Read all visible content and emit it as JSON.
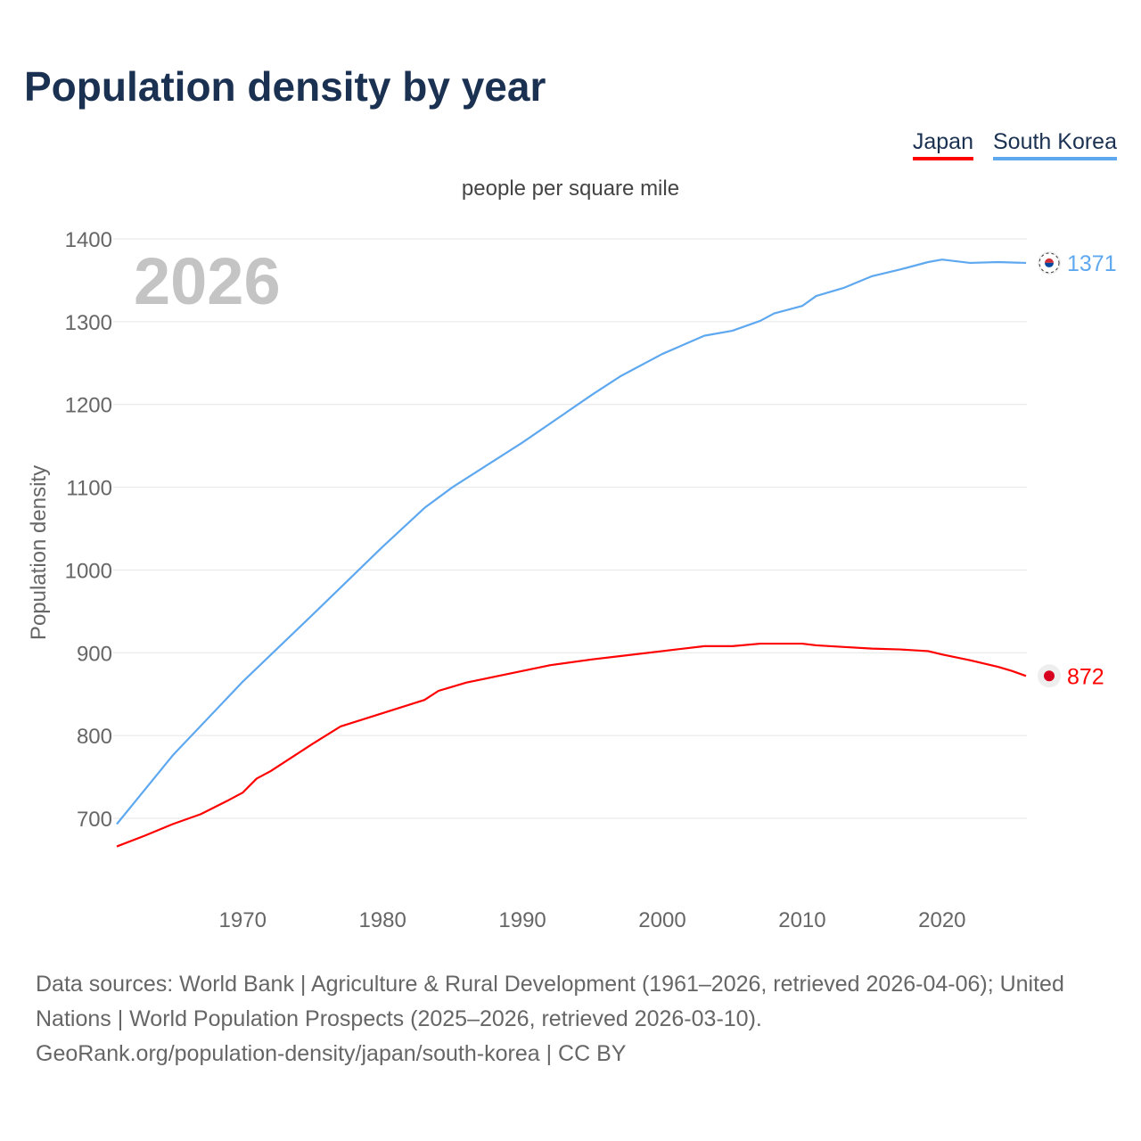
{
  "title": "Population density by year",
  "legend": [
    {
      "label": "Japan",
      "color": "#ff0000"
    },
    {
      "label": "South Korea",
      "color": "#5ea8f0"
    }
  ],
  "footer": {
    "line1": "Data sources: World Bank | Agriculture & Rural Development (1961–2026, retrieved 2026-04-06); United Nations | World Population Prospects (2025–2026, retrieved 2026-03-10).",
    "line2": "GeoRank.org/population-density/japan/south-korea | CC BY"
  },
  "chart_data": {
    "type": "line",
    "title": "Population density by year",
    "subtitle": "people per square mile",
    "xlabel": "",
    "ylabel": "Population density",
    "watermark_year": "2026",
    "xlim": [
      1961,
      2026
    ],
    "ylim": [
      620,
      1400
    ],
    "xticks": [
      1970,
      1980,
      1990,
      2000,
      2010,
      2020
    ],
    "yticks": [
      700,
      800,
      900,
      1000,
      1100,
      1200,
      1300,
      1400
    ],
    "grid": true,
    "legend_position": "top-right",
    "series": [
      {
        "name": "South Korea",
        "color": "#5ea8f0",
        "end_label": "1371",
        "x": [
          1961,
          1965,
          1970,
          1975,
          1980,
          1983,
          1985,
          1990,
          1995,
          1997,
          2000,
          2003,
          2005,
          2007,
          2008,
          2010,
          2011,
          2013,
          2015,
          2017,
          2019,
          2020,
          2022,
          2024,
          2026
        ],
        "y": [
          693,
          776,
          865,
          946,
          1028,
          1075,
          1100,
          1154,
          1212,
          1234,
          1261,
          1283,
          1289,
          1301,
          1310,
          1319,
          1331,
          1341,
          1355,
          1363,
          1372,
          1375,
          1371,
          1372,
          1371
        ]
      },
      {
        "name": "Japan",
        "color": "#ff0000",
        "end_label": "872",
        "x": [
          1961,
          1963,
          1965,
          1967,
          1969,
          1970,
          1971,
          1972,
          1975,
          1977,
          1980,
          1983,
          1984,
          1986,
          1988,
          1990,
          1992,
          1995,
          1997,
          2000,
          2001,
          2003,
          2005,
          2007,
          2010,
          2011,
          2013,
          2015,
          2017,
          2019,
          2020,
          2022,
          2024,
          2025,
          2026
        ],
        "y": [
          666,
          679,
          693,
          705,
          722,
          731,
          748,
          757,
          790,
          811,
          827,
          843,
          854,
          864,
          871,
          878,
          885,
          892,
          896,
          902,
          904,
          908,
          908,
          911,
          911,
          909,
          907,
          905,
          904,
          902,
          898,
          891,
          883,
          878,
          872
        ]
      }
    ]
  }
}
